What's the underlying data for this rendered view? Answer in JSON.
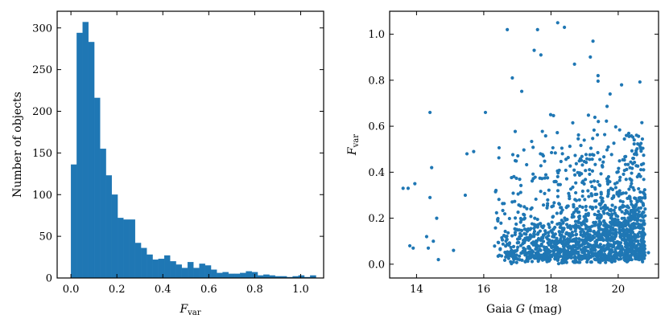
{
  "chart_data": [
    {
      "type": "bar",
      "subtype": "histogram",
      "xlabel": "F",
      "xlabel_sub": "var",
      "ylabel": "Number of objects",
      "xlim": [
        -0.06,
        1.1
      ],
      "ylim": [
        0,
        320
      ],
      "xticks": [
        0.0,
        0.2,
        0.4,
        0.6,
        0.8,
        1.0
      ],
      "xtick_labels": [
        "0.0",
        "0.2",
        "0.4",
        "0.6",
        "0.8",
        "1.0"
      ],
      "yticks": [
        0,
        50,
        100,
        150,
        200,
        250,
        300
      ],
      "ytick_labels": [
        "0",
        "50",
        "100",
        "150",
        "200",
        "250",
        "300"
      ],
      "bin_width": 0.0254,
      "bin_start": 0.0,
      "values": [
        136,
        294,
        307,
        283,
        216,
        155,
        123,
        100,
        72,
        70,
        70,
        42,
        36,
        28,
        22,
        23,
        27,
        20,
        16,
        12,
        19,
        12,
        17,
        15,
        10,
        6,
        7,
        5,
        5,
        6,
        8,
        7,
        3,
        4,
        3,
        2,
        2,
        1,
        2,
        3,
        1,
        3
      ],
      "color": "#1f77b4",
      "ticks_direction": "in"
    },
    {
      "type": "scatter",
      "xlabel": "Gaia ",
      "xlabel_italic": "G",
      "xlabel_suffix": " (mag)",
      "ylabel": "F",
      "ylabel_sub": "var",
      "xlim": [
        13.2,
        21.2
      ],
      "ylim": [
        -0.06,
        1.1
      ],
      "xticks": [
        14,
        16,
        18,
        20
      ],
      "xtick_labels": [
        "14",
        "16",
        "18",
        "20"
      ],
      "yticks": [
        0.0,
        0.2,
        0.4,
        0.6,
        0.8,
        1.0
      ],
      "ytick_labels": [
        "0.0",
        "0.2",
        "0.4",
        "0.6",
        "0.8",
        "1.0"
      ],
      "color": "#1f77b4",
      "ticks_direction": "in",
      "highlighted_points": [
        {
          "x": 13.6,
          "y": 0.33
        },
        {
          "x": 13.75,
          "y": 0.33
        },
        {
          "x": 13.95,
          "y": 0.35
        },
        {
          "x": 13.8,
          "y": 0.08
        },
        {
          "x": 13.9,
          "y": 0.07
        },
        {
          "x": 14.4,
          "y": 0.66
        },
        {
          "x": 14.45,
          "y": 0.42
        },
        {
          "x": 14.4,
          "y": 0.29
        },
        {
          "x": 14.6,
          "y": 0.2
        },
        {
          "x": 14.3,
          "y": 0.12
        },
        {
          "x": 14.5,
          "y": 0.1
        },
        {
          "x": 14.35,
          "y": 0.07
        },
        {
          "x": 14.65,
          "y": 0.02
        },
        {
          "x": 15.1,
          "y": 0.06
        },
        {
          "x": 15.5,
          "y": 0.48
        },
        {
          "x": 15.7,
          "y": 0.49
        },
        {
          "x": 15.45,
          "y": 0.3
        },
        {
          "x": 16.7,
          "y": 1.02
        },
        {
          "x": 17.6,
          "y": 1.02
        },
        {
          "x": 18.2,
          "y": 1.05
        },
        {
          "x": 18.4,
          "y": 1.03
        },
        {
          "x": 19.25,
          "y": 0.97
        },
        {
          "x": 16.85,
          "y": 0.81
        },
        {
          "x": 16.05,
          "y": 0.66
        },
        {
          "x": 17.5,
          "y": 0.93
        },
        {
          "x": 17.7,
          "y": 0.91
        },
        {
          "x": 18.7,
          "y": 0.87
        },
        {
          "x": 19.4,
          "y": 0.82
        },
        {
          "x": 20.1,
          "y": 0.78
        },
        {
          "x": 20.8,
          "y": 0.24
        },
        {
          "x": 20.6,
          "y": 0.12
        },
        {
          "x": 20.9,
          "y": 0.05
        }
      ],
      "cloud_description_ranges": {
        "dense_x_range": [
          16.5,
          20.5
        ],
        "dense_y_range": [
          0.0,
          0.3
        ]
      }
    }
  ]
}
